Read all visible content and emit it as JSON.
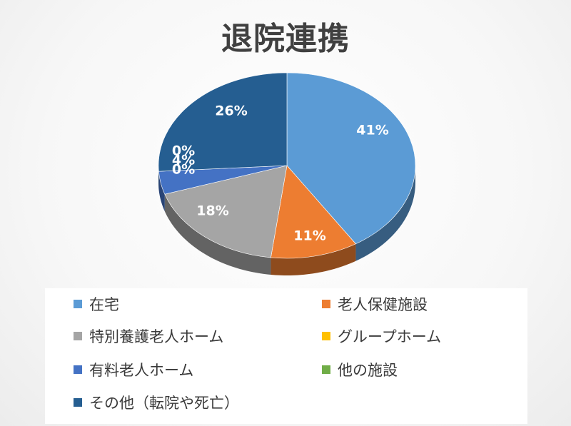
{
  "chart_data": {
    "type": "pie",
    "title": "退院連携",
    "categories": [
      "在宅",
      "老人保健施設",
      "特別養護老人ホーム",
      "グループホーム",
      "有料老人ホーム",
      "他の施設",
      "その他（転院や死亡）"
    ],
    "values": [
      41,
      11,
      18,
      0,
      4,
      0,
      26
    ],
    "labels": [
      "41%",
      "11%",
      "18%",
      "0%",
      "4%",
      "0%",
      "26%"
    ],
    "colors": [
      "#5b9bd5",
      "#ed7d31",
      "#a5a5a5",
      "#ffc000",
      "#4472c4",
      "#70ad47",
      "#255e91"
    ],
    "legend_position": "bottom",
    "style": "3d-pie"
  }
}
